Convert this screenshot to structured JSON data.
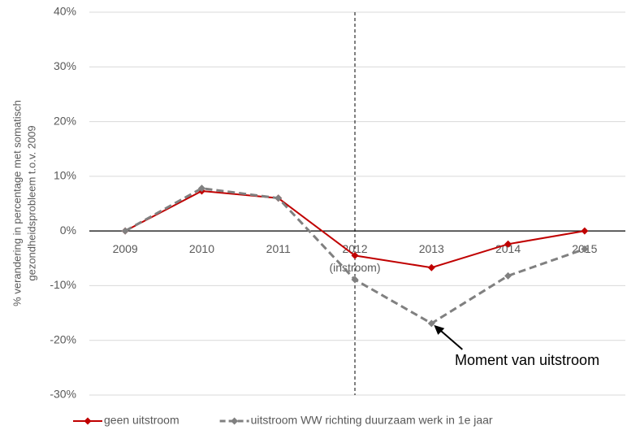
{
  "chart_data": {
    "type": "line",
    "y_axis_label": [
      "% verandering in percentage met somatisch",
      "gezondheidsprobleem t.o.v. 2009"
    ],
    "categories": [
      "2009",
      "2010",
      "2011",
      "2012",
      "2013",
      "2014",
      "2015"
    ],
    "category_note": "(instroom)",
    "series": [
      {
        "name": "geen uitstroom",
        "color": "#c00000",
        "dashed": false,
        "values": [
          0,
          7.3,
          6.0,
          -4.5,
          -6.7,
          -2.4,
          0
        ]
      },
      {
        "name": "uitstroom WW richting duurzaam werk in 1e jaar",
        "color": "#808080",
        "dashed": true,
        "values": [
          0,
          7.8,
          6.0,
          -8.9,
          -16.9,
          -8.2,
          -3.3
        ]
      }
    ],
    "ylim": [
      -30,
      40
    ],
    "yticks": [
      {
        "value": -30,
        "label": "-30%"
      },
      {
        "value": -20,
        "label": "-20%"
      },
      {
        "value": -10,
        "label": "-10%"
      },
      {
        "value": 0,
        "label": "0%"
      },
      {
        "value": 10,
        "label": "10%"
      },
      {
        "value": 20,
        "label": "20%"
      },
      {
        "value": 30,
        "label": "30%"
      },
      {
        "value": 40,
        "label": "40%"
      }
    ],
    "grid": true,
    "annotation": "Moment van uitstroom",
    "legend": "bottom"
  }
}
